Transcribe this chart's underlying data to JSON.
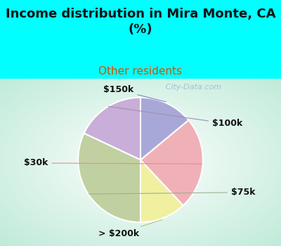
{
  "title": "Income distribution in Mira Monte, CA\n(%)",
  "subtitle": "Other residents",
  "title_fontsize": 13,
  "subtitle_fontsize": 11,
  "title_color": "#111111",
  "subtitle_color": "#cc5500",
  "bg_cyan": "#00ffff",
  "slices": [
    {
      "label": "$100k",
      "value": 18,
      "color": "#c8aed8"
    },
    {
      "label": "$75k",
      "value": 32,
      "color": "#c0d0a0"
    },
    {
      "label": "> $200k",
      "value": 12,
      "color": "#f0f0a0"
    },
    {
      "label": "$30k",
      "value": 24,
      "color": "#f0b0b8"
    },
    {
      "label": "$150k",
      "value": 14,
      "color": "#a8a8d8"
    }
  ],
  "label_fontsize": 9,
  "label_color": "#111111",
  "line_colors": {
    "$100k": "#a090b0",
    "$75k": "#a0b090",
    "> $200k": "#c0c080",
    "$30k": "#e09090",
    "$150k": "#8080c0"
  },
  "watermark_color": "#a0b8c8",
  "watermark_text": "   City-Data.com",
  "watermark_fontsize": 8
}
